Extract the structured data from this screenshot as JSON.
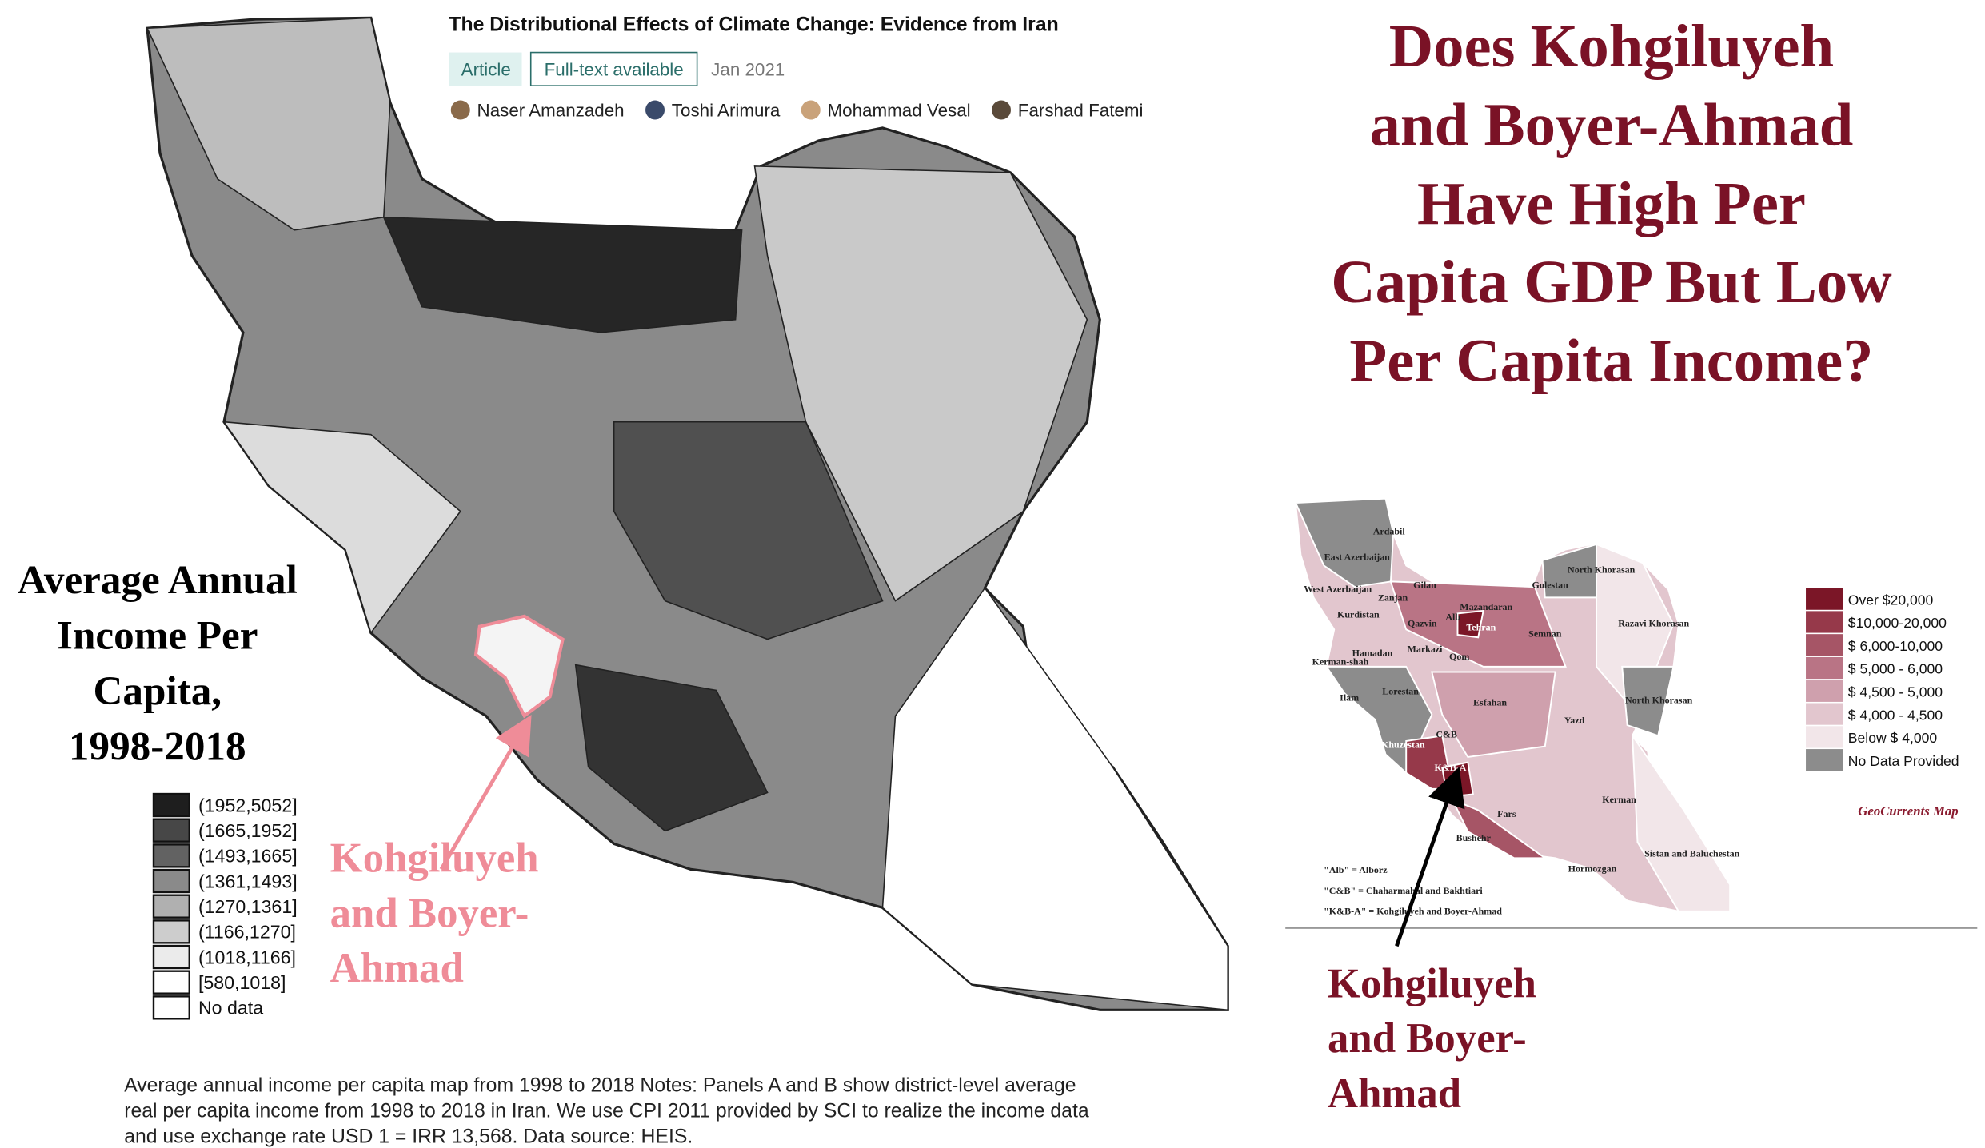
{
  "paper": {
    "title": "The Distributional Effects of Climate Change: Evidence from Iran",
    "badges": [
      "Article",
      "Full-text available"
    ],
    "date": "Jan 2021",
    "authors": [
      "Naser Amanzadeh",
      "Toshi Arimura",
      "Mohammad Vesal",
      "Farshad Fatemi"
    ]
  },
  "headline_lines": [
    "Does Kohgiluyeh",
    "and Boyer-Ahmad",
    "Have High Per",
    "Capita GDP But Low",
    "Per Capita Income?"
  ],
  "left_label_lines": [
    "Average Annual",
    "Income Per",
    "Capita,",
    "1998-2018"
  ],
  "left_legend": [
    {
      "label": "(1952,5052]",
      "color": "#1e1e1e"
    },
    {
      "label": "(1665,1952]",
      "color": "#474747"
    },
    {
      "label": "(1493,1665]",
      "color": "#626262"
    },
    {
      "label": "(1361,1493]",
      "color": "#8a8a8a"
    },
    {
      "label": "(1270,1361]",
      "color": "#b0b0b0"
    },
    {
      "label": "(1166,1270]",
      "color": "#cdcdcd"
    },
    {
      "label": "(1018,1166]",
      "color": "#ebebeb"
    },
    {
      "label": "[580,1018]",
      "color": "#ffffff"
    },
    {
      "label": "No data",
      "color": "#ffffff"
    }
  ],
  "left_annotation_lines": [
    "Kohgiluyeh",
    "and Boyer-",
    "Ahmad"
  ],
  "caption_lines": [
    "Average annual income per capita map from 1998 to 2018 Notes: Panels A and B show district-level average",
    "real per capita income from 1998 to 2018 in Iran. We use CPI 2011 provided by SCI to realize the income data",
    "and use exchange rate USD 1 = IRR 13,568. Data source: HEIS."
  ],
  "right_map": {
    "provinces": [
      "East Azerbaijan",
      "Ardabil",
      "Gilan",
      "West Azerbaijan",
      "Zanjan",
      "Kurdistan",
      "Alb",
      "Mazandaran",
      "Golestan",
      "North Khorasan",
      "Tehran",
      "Qazvin",
      "Hamadan",
      "Markazi",
      "Qom",
      "Semnan",
      "Razavi Khorasan",
      "Kerman-shah",
      "Ilam",
      "Lorestan",
      "Esfahan",
      "North Khorasan",
      "Yazd",
      "Khuzestan",
      "C&B",
      "K&B-A",
      "Fars",
      "Kerman",
      "Bushehr",
      "Hormozgan",
      "Sistan and Baluchestan"
    ],
    "legend": [
      {
        "label": "Over $20,000",
        "color": "#7b1627"
      },
      {
        "label": "$10,000-20,000",
        "color": "#96394a"
      },
      {
        "label": "$ 6,000-10,000",
        "color": "#a65566"
      },
      {
        "label": "$ 5,000 - 6,000",
        "color": "#b97485"
      },
      {
        "label": "$ 4,500 - 5,000",
        "color": "#cfa0ad"
      },
      {
        "label": "$ 4,000 - 4,500",
        "color": "#e2c6ce"
      },
      {
        "label": "Below $ 4,000",
        "color": "#f2e6e9"
      },
      {
        "label": "No Data Provided",
        "color": "#8c8c8c"
      }
    ],
    "credit": "GeoCurrents Map",
    "notes": [
      "\"Alb\" = Alborz",
      "\"C&B\" = Chaharmahal and Bakhtiari",
      "\"K&B-A\" = Kohgiluyeh and Boyer-Ahmad"
    ],
    "annotation_lines": [
      "Kohgiluyeh",
      "and Boyer-",
      "Ahmad"
    ]
  }
}
